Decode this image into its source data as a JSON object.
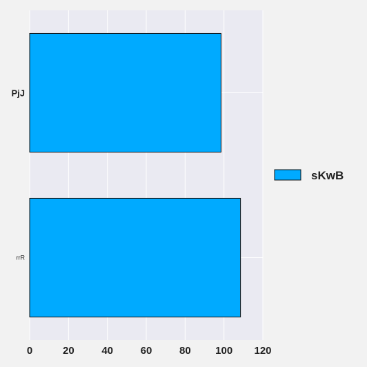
{
  "chart_data": {
    "type": "bar",
    "orientation": "horizontal",
    "categories": [
      "PjJ",
      "rrR"
    ],
    "series": [
      {
        "name": "sKwB",
        "values": [
          98.5,
          108.5
        ]
      }
    ],
    "xlim": [
      0,
      120
    ],
    "xticks": [
      "0",
      "20",
      "40",
      "60",
      "80",
      "100",
      "120"
    ],
    "grid": true,
    "legend_position": "right",
    "colors": {
      "bar_fill": "#00aaff",
      "bar_edge": "#111111",
      "plot_background": "#eaeaf2",
      "page_background": "#f2f2f2",
      "grid": "#ffffff"
    }
  }
}
